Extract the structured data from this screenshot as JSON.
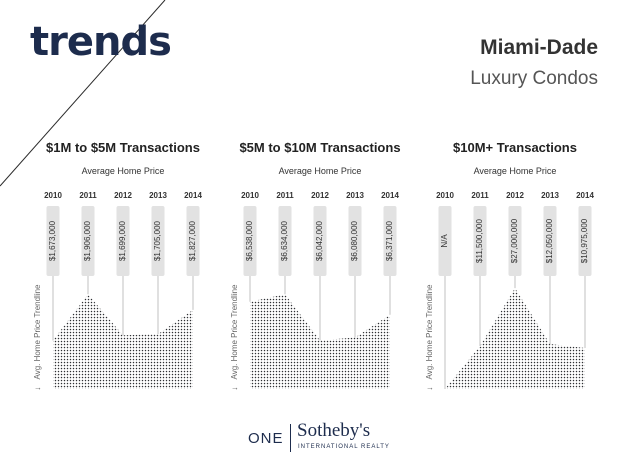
{
  "header": {
    "logo": "trends",
    "title": "Miami-Dade",
    "subtitle": "Luxury Condos"
  },
  "footer": {
    "one": "ONE",
    "brand": "Sotheby's",
    "brand_sub": "INTERNATIONAL REALTY"
  },
  "colors": {
    "navy": "#1d2c4d",
    "dot": "#2e3033",
    "callout": "#e2e2e2"
  },
  "chart_data": [
    {
      "type": "area",
      "title": "$1M to $5M Transactions",
      "subtitle": "Average Home Price",
      "ylabel": "Avg. Home Price Trendline",
      "categories": [
        "2010",
        "2011",
        "2012",
        "2013",
        "2014"
      ],
      "labels": [
        "$1,673,000",
        "$1,906,000",
        "$1,699,000",
        "$1,705,000",
        "$1,827,000"
      ],
      "values": [
        1673000,
        1906000,
        1699000,
        1705000,
        1827000
      ]
    },
    {
      "type": "area",
      "title": "$5M to $10M Transactions",
      "subtitle": "Average Home Price",
      "ylabel": "Avg. Home Price Trendline",
      "categories": [
        "2010",
        "2011",
        "2012",
        "2013",
        "2014"
      ],
      "labels": [
        "$6,538,000",
        "$6,634,000",
        "$6,042,000",
        "$6,080,000",
        "$6,371,000"
      ],
      "values": [
        6538000,
        6634000,
        6042000,
        6080000,
        6371000
      ]
    },
    {
      "type": "area",
      "title": "$10M+ Transactions",
      "subtitle": "Average Home Price",
      "ylabel": "Avg. Home Price Trendline",
      "categories": [
        "2010",
        "2011",
        "2012",
        "2013",
        "2014"
      ],
      "labels": [
        "N/A",
        "$11,500,000",
        "$27,000,000",
        "$12,050,000",
        "$10,975,000"
      ],
      "values": [
        null,
        11500000,
        27000000,
        12050000,
        10975000
      ]
    }
  ]
}
